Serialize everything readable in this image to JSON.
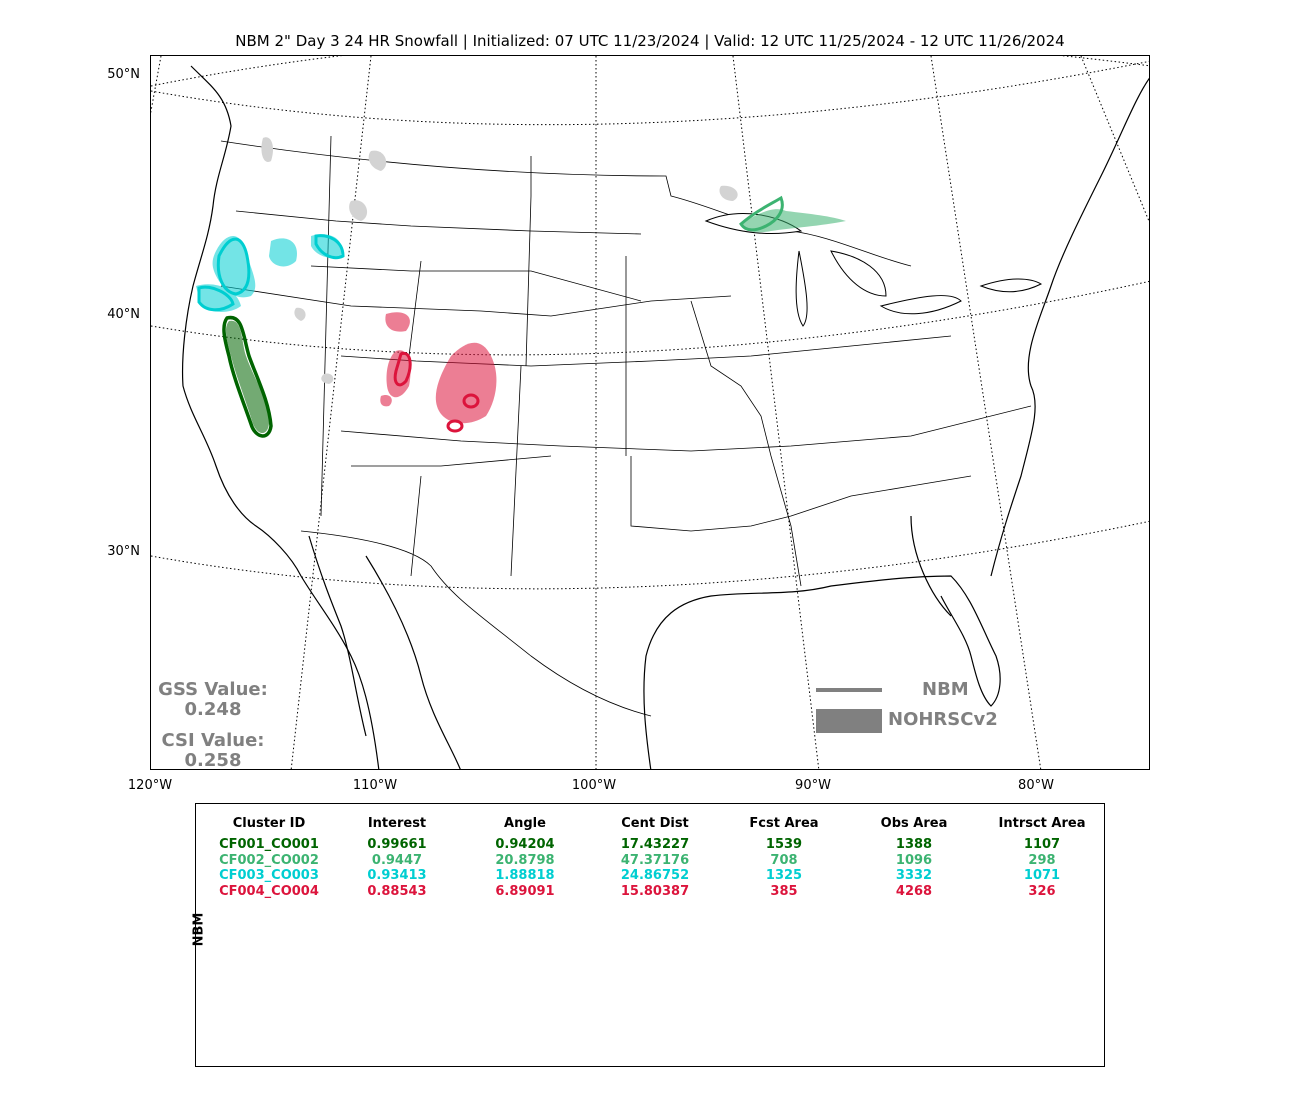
{
  "title": "NBM 2\" Day 3 24 HR Snowfall | Initialized: 07 UTC 11/23/2024 | Valid: 12 UTC 11/25/2024 - 12 UTC 11/26/2024",
  "lat_labels": [
    "50°N",
    "40°N",
    "30°N"
  ],
  "lon_labels": [
    "120°W",
    "110°W",
    "100°W",
    "90°W",
    "80°W"
  ],
  "scores": {
    "gss_label": "GSS Value:",
    "gss_value": "0.248",
    "csi_label": "CSI Value:",
    "csi_value": "0.258"
  },
  "legend": {
    "line_label": "NBM",
    "fill_label": "NOHRSCv2",
    "color": "#808080"
  },
  "table": {
    "row_label": "NBM",
    "headers": [
      "Cluster ID",
      "Interest",
      "Angle",
      "Cent Dist",
      "Fcst Area",
      "Obs Area",
      "Intrsct Area"
    ],
    "rows": [
      {
        "color": "#006400",
        "cells": [
          "CF001_CO001",
          "0.99661",
          "0.94204",
          "17.43227",
          "1539",
          "1388",
          "1107"
        ]
      },
      {
        "color": "#3cb371",
        "cells": [
          "CF002_CO002",
          "0.9447",
          "20.8798",
          "47.37176",
          "708",
          "1096",
          "298"
        ]
      },
      {
        "color": "#00ced1",
        "cells": [
          "CF003_CO003",
          "0.93413",
          "1.88818",
          "24.86752",
          "1325",
          "3332",
          "1071"
        ]
      },
      {
        "color": "#dc143c",
        "cells": [
          "CF004_CO004",
          "0.88543",
          "6.89091",
          "15.80387",
          "385",
          "4268",
          "326"
        ]
      }
    ]
  },
  "colors": {
    "cluster1": "#006400",
    "cluster2": "#3cb371",
    "cluster3": "#00ced1",
    "cluster4": "#dc143c",
    "unmatched": "#d3d3d3"
  }
}
